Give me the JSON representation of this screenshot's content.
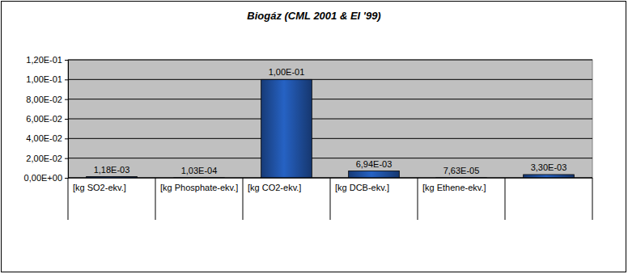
{
  "chart_data": {
    "type": "bar",
    "title": "Biogáz (CML 2001 & EI '99)",
    "categories": [
      "[kg SO2-ekv.]",
      "[kg Phosphate-ekv.]",
      "[kg CO2-ekv.]",
      "[kg DCB-ekv.]",
      "[kg Ethene-ekv.]",
      null
    ],
    "values": [
      0.00118,
      0.000103,
      0.1,
      0.00694,
      7.63e-05,
      0.0033
    ],
    "value_labels": [
      "1,18E-03",
      "1,03E-04",
      "1,00E-01",
      "6,94E-03",
      "7,63E-05",
      "3,30E-03"
    ],
    "color": "#1f4f9e",
    "ylim": [
      0,
      0.12
    ],
    "yticks": [
      {
        "value": 0,
        "label": "0,00E+00"
      },
      {
        "value": 0.02,
        "label": "2,00E-02"
      },
      {
        "value": 0.04,
        "label": "4,00E-02"
      },
      {
        "value": 0.06,
        "label": "6,00E-02"
      },
      {
        "value": 0.08,
        "label": "8,00E-02"
      },
      {
        "value": 0.1,
        "label": "1,00E-01"
      },
      {
        "value": 0.12,
        "label": "1,20E-01"
      }
    ],
    "grid": true,
    "data_labels": true
  }
}
